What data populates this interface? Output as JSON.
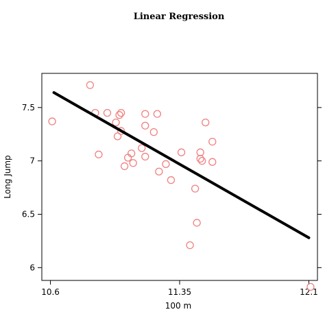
{
  "chart_data": {
    "type": "scatter",
    "title": "Linear Regression",
    "xlabel": "100 m",
    "ylabel": "Long Jump",
    "xlim": [
      10.55,
      12.15
    ],
    "ylim": [
      5.88,
      7.82
    ],
    "x_ticks": [
      {
        "value": 10.6,
        "label": "10.6"
      },
      {
        "value": 11.35,
        "label": "11.35"
      },
      {
        "value": 12.1,
        "label": "12.1"
      }
    ],
    "y_ticks": [
      {
        "value": 6,
        "label": "6"
      },
      {
        "value": 6.5,
        "label": "6.5"
      },
      {
        "value": 7,
        "label": "7"
      },
      {
        "value": 7.5,
        "label": "7.5"
      }
    ],
    "grid": false,
    "marker_color": "#f08080",
    "line_color": "#000000",
    "points": [
      {
        "x": 10.61,
        "y": 7.37
      },
      {
        "x": 10.83,
        "y": 7.71
      },
      {
        "x": 10.86,
        "y": 7.45
      },
      {
        "x": 10.88,
        "y": 7.06
      },
      {
        "x": 10.93,
        "y": 7.45
      },
      {
        "x": 10.98,
        "y": 7.36
      },
      {
        "x": 10.99,
        "y": 7.23
      },
      {
        "x": 11.0,
        "y": 7.43
      },
      {
        "x": 11.01,
        "y": 7.45
      },
      {
        "x": 11.01,
        "y": 7.28
      },
      {
        "x": 11.03,
        "y": 6.95
      },
      {
        "x": 11.05,
        "y": 7.03
      },
      {
        "x": 11.07,
        "y": 7.07
      },
      {
        "x": 11.08,
        "y": 6.98
      },
      {
        "x": 11.13,
        "y": 7.12
      },
      {
        "x": 11.15,
        "y": 7.44
      },
      {
        "x": 11.15,
        "y": 7.33
      },
      {
        "x": 11.15,
        "y": 7.04
      },
      {
        "x": 11.2,
        "y": 7.27
      },
      {
        "x": 11.22,
        "y": 7.44
      },
      {
        "x": 11.23,
        "y": 6.9
      },
      {
        "x": 11.27,
        "y": 6.97
      },
      {
        "x": 11.3,
        "y": 6.82
      },
      {
        "x": 11.36,
        "y": 7.08
      },
      {
        "x": 11.41,
        "y": 6.21
      },
      {
        "x": 11.44,
        "y": 6.74
      },
      {
        "x": 11.45,
        "y": 6.42
      },
      {
        "x": 11.47,
        "y": 7.08
      },
      {
        "x": 11.47,
        "y": 7.02
      },
      {
        "x": 11.48,
        "y": 7.0
      },
      {
        "x": 11.5,
        "y": 7.36
      },
      {
        "x": 11.54,
        "y": 7.18
      },
      {
        "x": 11.54,
        "y": 6.99
      },
      {
        "x": 12.11,
        "y": 5.82
      }
    ],
    "regression_line": {
      "x": [
        10.62,
        12.1
      ],
      "y": [
        7.64,
        6.28
      ]
    }
  }
}
